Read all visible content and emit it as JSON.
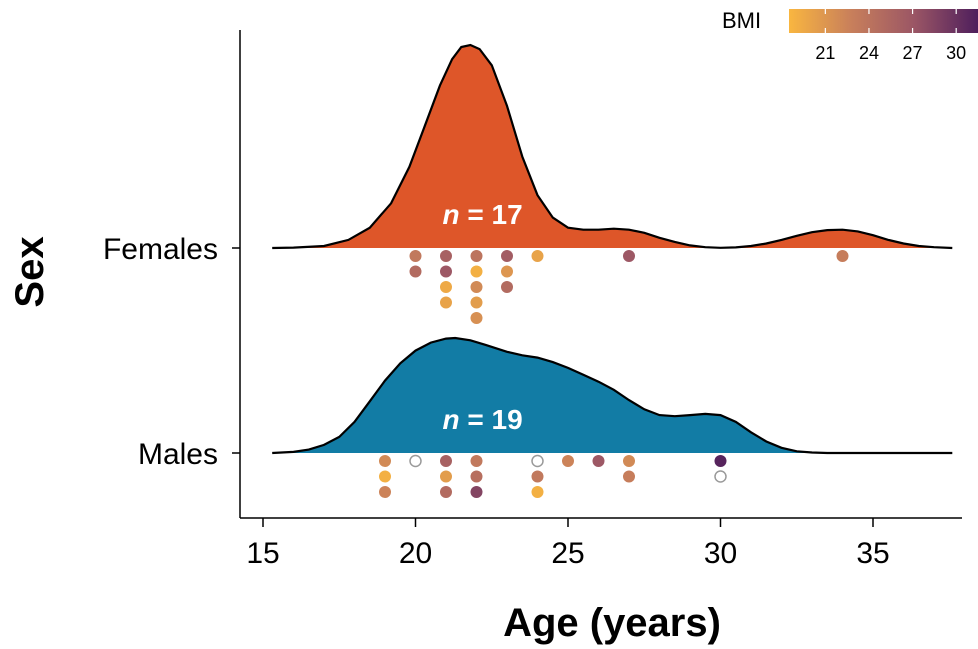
{
  "chart_data": {
    "type": "raincloud",
    "xlabel": "Age (years)",
    "ylabel": "Sex",
    "xlim": [
      13.8,
      38.5
    ],
    "xticks": [
      15,
      20,
      25,
      30,
      35
    ],
    "grid": false,
    "legend": {
      "title": "BMI",
      "placement": "top-right",
      "ticks": [
        21,
        24,
        27,
        30
      ],
      "range": [
        18.5,
        31.5
      ],
      "colors": [
        "#F9B640",
        "#C87F5B",
        "#9B5665",
        "#4E1E5C"
      ]
    },
    "groups": [
      {
        "name": "Females",
        "n_label_italic": "n",
        "n_label_rest": " = 17",
        "fill": "#DE5629",
        "density": [
          [
            15.3,
            0.0
          ],
          [
            16.0,
            0.002
          ],
          [
            17.0,
            0.01
          ],
          [
            17.8,
            0.04
          ],
          [
            18.5,
            0.1
          ],
          [
            19.2,
            0.22
          ],
          [
            19.8,
            0.4
          ],
          [
            20.3,
            0.6
          ],
          [
            20.8,
            0.8
          ],
          [
            21.2,
            0.93
          ],
          [
            21.5,
            0.99
          ],
          [
            21.8,
            1.0
          ],
          [
            22.1,
            0.98
          ],
          [
            22.5,
            0.9
          ],
          [
            23.0,
            0.7
          ],
          [
            23.5,
            0.45
          ],
          [
            24.0,
            0.26
          ],
          [
            24.5,
            0.15
          ],
          [
            25.0,
            0.1
          ],
          [
            25.5,
            0.09
          ],
          [
            26.0,
            0.09
          ],
          [
            26.5,
            0.095
          ],
          [
            27.0,
            0.09
          ],
          [
            27.5,
            0.075
          ],
          [
            28.0,
            0.05
          ],
          [
            28.5,
            0.03
          ],
          [
            29.0,
            0.013
          ],
          [
            29.5,
            0.004
          ],
          [
            30.0,
            0.001
          ],
          [
            30.5,
            0.003
          ],
          [
            31.0,
            0.01
          ],
          [
            31.5,
            0.022
          ],
          [
            32.0,
            0.04
          ],
          [
            32.5,
            0.06
          ],
          [
            33.0,
            0.078
          ],
          [
            33.5,
            0.088
          ],
          [
            34.0,
            0.09
          ],
          [
            34.5,
            0.082
          ],
          [
            35.0,
            0.063
          ],
          [
            35.5,
            0.04
          ],
          [
            36.0,
            0.022
          ],
          [
            36.5,
            0.01
          ],
          [
            37.0,
            0.004
          ],
          [
            37.6,
            0.0
          ]
        ],
        "points": [
          {
            "age": 20,
            "bmi": 23.5
          },
          {
            "age": 20,
            "bmi": 25
          },
          {
            "age": 21,
            "bmi": 26
          },
          {
            "age": 21,
            "bmi": 27
          },
          {
            "age": 21,
            "bmi": 19.5
          },
          {
            "age": 21,
            "bmi": 20
          },
          {
            "age": 22,
            "bmi": 24
          },
          {
            "age": 22,
            "bmi": 19
          },
          {
            "age": 22,
            "bmi": 22
          },
          {
            "age": 22,
            "bmi": 20.5
          },
          {
            "age": 22,
            "bmi": 21.5
          },
          {
            "age": 23,
            "bmi": 26.5
          },
          {
            "age": 23,
            "bmi": 21
          },
          {
            "age": 23,
            "bmi": 25
          },
          {
            "age": 24,
            "bmi": 20
          },
          {
            "age": 27,
            "bmi": 27
          },
          {
            "age": 34,
            "bmi": 23
          }
        ]
      },
      {
        "name": "Males",
        "n_label_italic": "n",
        "n_label_rest": " = 19",
        "fill": "#127CA5",
        "density": [
          [
            15.3,
            0.0
          ],
          [
            16.0,
            0.01
          ],
          [
            16.5,
            0.03
          ],
          [
            17.0,
            0.07
          ],
          [
            17.5,
            0.14
          ],
          [
            18.0,
            0.27
          ],
          [
            18.5,
            0.45
          ],
          [
            19.0,
            0.63
          ],
          [
            19.5,
            0.78
          ],
          [
            20.0,
            0.89
          ],
          [
            20.5,
            0.96
          ],
          [
            21.0,
            0.995
          ],
          [
            21.3,
            1.0
          ],
          [
            21.8,
            0.98
          ],
          [
            22.3,
            0.94
          ],
          [
            23.0,
            0.88
          ],
          [
            23.5,
            0.85
          ],
          [
            24.0,
            0.83
          ],
          [
            24.5,
            0.79
          ],
          [
            25.0,
            0.74
          ],
          [
            25.5,
            0.68
          ],
          [
            26.0,
            0.62
          ],
          [
            26.5,
            0.55
          ],
          [
            27.0,
            0.46
          ],
          [
            27.5,
            0.38
          ],
          [
            28.0,
            0.33
          ],
          [
            28.5,
            0.32
          ],
          [
            29.0,
            0.33
          ],
          [
            29.5,
            0.34
          ],
          [
            30.0,
            0.33
          ],
          [
            30.5,
            0.27
          ],
          [
            31.0,
            0.18
          ],
          [
            31.5,
            0.1
          ],
          [
            32.0,
            0.045
          ],
          [
            32.5,
            0.015
          ],
          [
            33.0,
            0.004
          ],
          [
            33.5,
            0.0
          ],
          [
            37.6,
            0.0
          ]
        ],
        "points": [
          {
            "age": 19,
            "bmi": 22
          },
          {
            "age": 19,
            "bmi": 19
          },
          {
            "age": 19,
            "bmi": 22.5
          },
          {
            "age": 20,
            "bmi": null
          },
          {
            "age": 21,
            "bmi": 26
          },
          {
            "age": 21,
            "bmi": 20.5
          },
          {
            "age": 21,
            "bmi": 25
          },
          {
            "age": 22,
            "bmi": 23.5
          },
          {
            "age": 22,
            "bmi": 24.5
          },
          {
            "age": 22,
            "bmi": 28.5
          },
          {
            "age": 24,
            "bmi": null
          },
          {
            "age": 24,
            "bmi": 23.5
          },
          {
            "age": 24,
            "bmi": 19
          },
          {
            "age": 25,
            "bmi": 22.5
          },
          {
            "age": 26,
            "bmi": 27
          },
          {
            "age": 27,
            "bmi": 22
          },
          {
            "age": 27,
            "bmi": 23
          },
          {
            "age": 30,
            "bmi": 31
          },
          {
            "age": 30,
            "bmi": null
          }
        ]
      }
    ]
  }
}
